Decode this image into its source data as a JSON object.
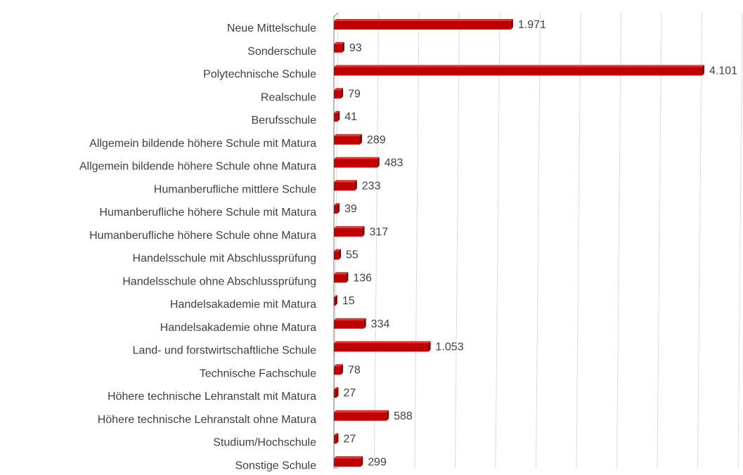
{
  "chart_data": {
    "type": "bar",
    "orientation": "horizontal",
    "color": "#c00000",
    "categories": [
      "Neue Mittelschule",
      "Sonderschule",
      "Polytechnische Schule",
      "Realschule",
      "Berufsschule",
      "Allgemein bildende höhere Schule mit Matura",
      "Allgemein bildende höhere Schule ohne Matura",
      "Humanberufliche mittlere Schule",
      "Humanberufliche höhere Schule mit Matura",
      "Humanberufliche höhere Schule ohne Matura",
      "Handelsschule mit Abschlussprüfung",
      "Handelsschule ohne Abschlussprüfung",
      "Handelsakademie mit Matura",
      "Handelsakademie ohne Matura",
      "Land- und forstwirtschaftliche Schule",
      "Technische Fachschule",
      "Höhere technische Lehranstalt mit Matura",
      "Höhere technische Lehranstalt ohne Matura",
      "Studium/Hochschule",
      "Sonstige Schule"
    ],
    "values": [
      1971,
      93,
      4101,
      79,
      41,
      289,
      483,
      233,
      39,
      317,
      55,
      136,
      15,
      334,
      1053,
      78,
      27,
      588,
      27,
      299
    ],
    "value_labels": [
      "1.971",
      "93",
      "4.101",
      "79",
      "41",
      "289",
      "483",
      "233",
      "39",
      "317",
      "55",
      "136",
      "15",
      "334",
      "1.053",
      "78",
      "27",
      "588",
      "27",
      "299"
    ],
    "xlim": [
      0,
      4500
    ],
    "xticks": [
      0,
      450,
      900,
      1350,
      1800,
      2250,
      2700,
      3150,
      3600,
      4050,
      4500
    ],
    "grid": true
  }
}
